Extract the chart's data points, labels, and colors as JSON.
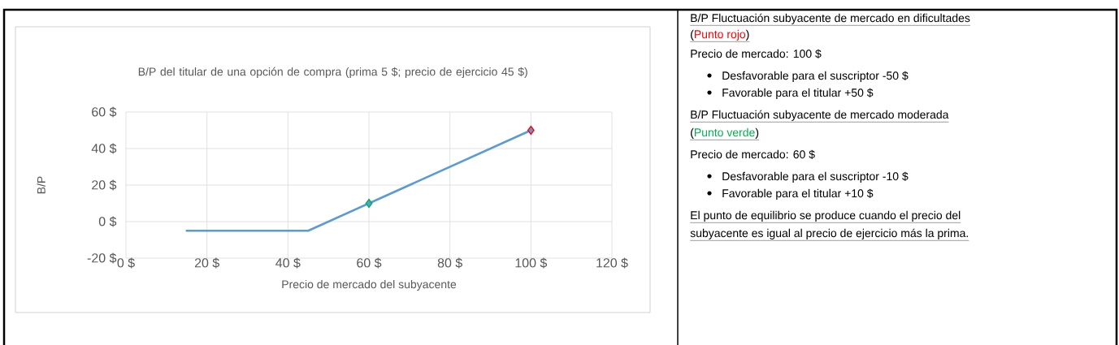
{
  "chart_data": {
    "type": "line",
    "title": "B/P del titular de una opción de compra (prima 5 $; precio de ejercicio 45 $)",
    "xlabel": "Precio de mercado del subyacente",
    "ylabel": "B/P",
    "xlim": [
      0,
      120
    ],
    "xticks": [
      {
        "value": 0,
        "label": "0 $"
      },
      {
        "value": 20,
        "label": "20 $"
      },
      {
        "value": 40,
        "label": "40 $"
      },
      {
        "value": 60,
        "label": "60 $"
      },
      {
        "value": 80,
        "label": "80 $"
      },
      {
        "value": 100,
        "label": "100 $"
      },
      {
        "value": 120,
        "label": "120 $"
      }
    ],
    "ylim": [
      -20,
      60
    ],
    "yticks": [
      {
        "value": -20,
        "label": "-20 $"
      },
      {
        "value": 0,
        "label": "0 $"
      },
      {
        "value": 20,
        "label": "20 $"
      },
      {
        "value": 40,
        "label": "40 $"
      },
      {
        "value": 60,
        "label": "60 $"
      }
    ],
    "grid": true,
    "series": [
      {
        "color": "#5b9bd5",
        "x": [
          15,
          45,
          60,
          100
        ],
        "values": [
          -5,
          -5,
          10,
          50
        ],
        "marker": "none"
      },
      {
        "type": "scatter",
        "color": "#5b9bd5",
        "colors": [
          "#00b050",
          "#ff0000"
        ],
        "x": [
          60,
          100
        ],
        "values": [
          10,
          50
        ],
        "marker": "diamond"
      }
    ],
    "annotations": [
      "B/P Fluctuación subyacente de mercado en dificultades",
      "(",
      "Punto rojo",
      ")",
      "Precio de mercado: 100 $",
      "Desfavorable para el suscriptor -50 $",
      "Favorable para el titular +50 $",
      "B/P Fluctuación subyacente de mercado moderada",
      "(",
      "Punto verde",
      ")",
      "Precio de mercado: 60 $",
      "Desfavorable para el suscriptor -10 $",
      "Favorable para el titular +10 $",
      "El punto de equilibrio se produce cuando el precio del",
      "subyacente es igual al precio de ejercicio más la prima."
    ]
  }
}
